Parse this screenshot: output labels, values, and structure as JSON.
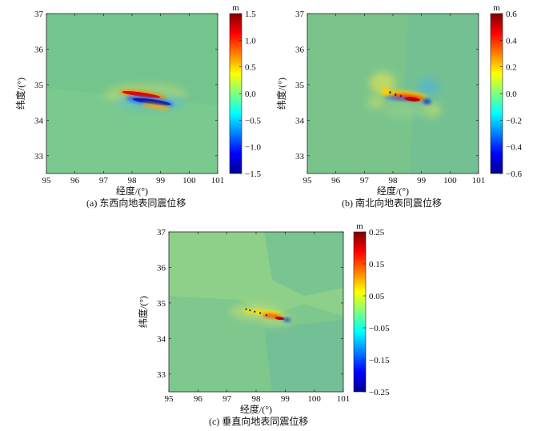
{
  "chart_data": [
    {
      "type": "heatmap",
      "caption": "(a) 东西向地表同震位移",
      "xlabel": "经度/(°)",
      "ylabel": "纬度/(°)",
      "xlim": [
        95,
        101
      ],
      "ylim": [
        32.5,
        37
      ],
      "xticks": [
        95,
        96,
        97,
        98,
        99,
        100,
        101
      ],
      "yticks": [
        33,
        34,
        35,
        36,
        37
      ],
      "colorbar": {
        "unit": "m",
        "range": [
          -1.5,
          1.5
        ],
        "ticks": [
          1.5,
          1.0,
          0.5,
          0.0,
          -0.5,
          -1.0,
          -1.5
        ],
        "tick_labels": [
          "1.5",
          "1.0",
          "0.5",
          "0.0",
          "−0.5",
          "−1.0",
          "−1.5"
        ],
        "colormap": "jet"
      },
      "background_value": 0.0,
      "features": [
        {
          "kind": "rupture_positive",
          "lon_range": [
            97.75,
            98.9
          ],
          "lat": 34.72,
          "value": 1.5
        },
        {
          "kind": "rupture_negative",
          "lon_range": [
            97.9,
            99.1
          ],
          "lat": 34.55,
          "value": -1.5
        }
      ]
    },
    {
      "type": "heatmap",
      "caption": "(b) 南北向地表同震位移",
      "xlabel": "经度/(°)",
      "ylabel": "纬度/(°)",
      "xlim": [
        95,
        101
      ],
      "ylim": [
        32.5,
        37
      ],
      "xticks": [
        95,
        96,
        97,
        98,
        99,
        100,
        101
      ],
      "yticks": [
        33,
        34,
        35,
        36,
        37
      ],
      "colorbar": {
        "unit": "m",
        "range": [
          -0.6,
          0.6
        ],
        "ticks": [
          0.6,
          0.4,
          0.2,
          0.0,
          -0.2,
          -0.4,
          -0.6
        ],
        "tick_labels": [
          "0.6",
          "0.4",
          "0.2",
          "0.0",
          "−0.2",
          "−0.4",
          "−0.6"
        ],
        "colormap": "jet"
      },
      "background_value": 0.0,
      "features": [
        {
          "kind": "rupture_mixed",
          "lon_range": [
            97.7,
            99.1
          ],
          "lat": 34.62,
          "value_range": [
            -0.6,
            0.6
          ]
        }
      ]
    },
    {
      "type": "heatmap",
      "caption": "(c) 垂直向地表同震位移",
      "xlabel": "经度/(°)",
      "ylabel": "纬度/(°)",
      "xlim": [
        95,
        101
      ],
      "ylim": [
        32.5,
        37
      ],
      "xticks": [
        95,
        96,
        97,
        98,
        99,
        100,
        101
      ],
      "yticks": [
        33,
        34,
        35,
        36,
        37
      ],
      "colorbar": {
        "unit": "m",
        "range": [
          -0.25,
          0.25
        ],
        "ticks": [
          0.25,
          0.15,
          0.05,
          -0.05,
          -0.15,
          -0.25
        ],
        "tick_labels": [
          "0.25",
          "0.15",
          "0.05",
          "−0.05",
          "−0.15",
          "−0.25"
        ],
        "colormap": "jet"
      },
      "background_value": 0.0,
      "features": [
        {
          "kind": "rupture_mixed",
          "lon_range": [
            97.4,
            99.2
          ],
          "lat": 34.62,
          "value_range": [
            -0.25,
            0.25
          ]
        }
      ]
    }
  ]
}
